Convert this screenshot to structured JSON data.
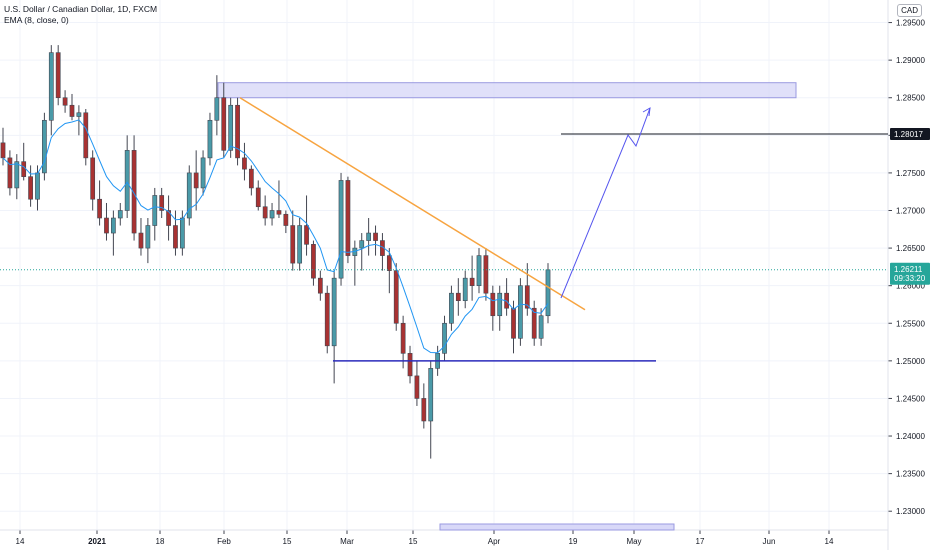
{
  "legend": {
    "title": "U.S. Dollar / Canadian Dollar, 1D, FXCM",
    "indicator": "EMA (8, close, 0)"
  },
  "currency": "CAD",
  "price_label": {
    "price": "1.26211",
    "time": "09:33:20"
  },
  "resistance_label": "1.28017",
  "colors": {
    "up": "#26a69a",
    "up_fill": "#4a9aa8",
    "down": "#8b1a1a",
    "down_fill": "#a83232",
    "wick": "#434651",
    "ema": "#2196f3",
    "trendline": "#f7a440",
    "support": "#2b2bbb",
    "arrow": "#5555ee",
    "zone_fill": "#d8d8f8",
    "zone_border": "#9a9ae0",
    "grid": "#f0f3fa",
    "price_badge": "#26a69a"
  },
  "chart_data": {
    "type": "candlestick",
    "title": "U.S. Dollar / Canadian Dollar, 1D, FXCM",
    "y_axis": {
      "ticks": [
        "1.29500",
        "1.29000",
        "1.28500",
        "1.28000",
        "1.27500",
        "1.27000",
        "1.26500",
        "1.26000",
        "1.25500",
        "1.25000",
        "1.24500",
        "1.24000",
        "1.23500",
        "1.23000"
      ],
      "min": 1.2275,
      "max": 1.298
    },
    "x_axis": {
      "ticks": [
        "14",
        "2021",
        "18",
        "Feb",
        "15",
        "Mar",
        "15",
        "Apr",
        "19",
        "May",
        "17",
        "Jun",
        "14"
      ],
      "bold": [
        "2021"
      ]
    },
    "series": [
      {
        "name": "USD/CAD",
        "candles": [
          [
            1.279,
            1.281,
            1.276,
            1.277
          ],
          [
            1.277,
            1.278,
            1.272,
            1.273
          ],
          [
            1.273,
            1.2775,
            1.2715,
            1.2765
          ],
          [
            1.2765,
            1.279,
            1.274,
            1.2745
          ],
          [
            1.2745,
            1.276,
            1.2705,
            1.2715
          ],
          [
            1.2715,
            1.276,
            1.27,
            1.275
          ],
          [
            1.275,
            1.283,
            1.274,
            1.282
          ],
          [
            1.282,
            1.292,
            1.28,
            1.291
          ],
          [
            1.291,
            1.292,
            1.284,
            1.285
          ],
          [
            1.285,
            1.286,
            1.283,
            1.284
          ],
          [
            1.284,
            1.2855,
            1.282,
            1.2825
          ],
          [
            1.2825,
            1.284,
            1.28,
            1.283
          ],
          [
            1.283,
            1.2835,
            1.276,
            1.277
          ],
          [
            1.277,
            1.278,
            1.27,
            1.2715
          ],
          [
            1.2715,
            1.274,
            1.268,
            1.269
          ],
          [
            1.269,
            1.271,
            1.266,
            1.267
          ],
          [
            1.267,
            1.27,
            1.264,
            1.269
          ],
          [
            1.269,
            1.271,
            1.268,
            1.27
          ],
          [
            1.27,
            1.28,
            1.269,
            1.278
          ],
          [
            1.278,
            1.28,
            1.266,
            1.267
          ],
          [
            1.267,
            1.269,
            1.264,
            1.265
          ],
          [
            1.265,
            1.269,
            1.263,
            1.268
          ],
          [
            1.268,
            1.273,
            1.266,
            1.272
          ],
          [
            1.272,
            1.273,
            1.269,
            1.27
          ],
          [
            1.27,
            1.272,
            1.266,
            1.268
          ],
          [
            1.268,
            1.27,
            1.264,
            1.265
          ],
          [
            1.265,
            1.27,
            1.264,
            1.269
          ],
          [
            1.269,
            1.276,
            1.268,
            1.275
          ],
          [
            1.275,
            1.278,
            1.27,
            1.273
          ],
          [
            1.273,
            1.278,
            1.272,
            1.277
          ],
          [
            1.277,
            1.283,
            1.276,
            1.282
          ],
          [
            1.282,
            1.288,
            1.28,
            1.285
          ],
          [
            1.285,
            1.287,
            1.277,
            1.278
          ],
          [
            1.278,
            1.285,
            1.277,
            1.284
          ],
          [
            1.284,
            1.285,
            1.276,
            1.277
          ],
          [
            1.277,
            1.279,
            1.274,
            1.2755
          ],
          [
            1.2755,
            1.276,
            1.272,
            1.273
          ],
          [
            1.273,
            1.274,
            1.27,
            1.2705
          ],
          [
            1.2705,
            1.272,
            1.268,
            1.269
          ],
          [
            1.269,
            1.271,
            1.268,
            1.27
          ],
          [
            1.27,
            1.274,
            1.269,
            1.2695
          ],
          [
            1.2695,
            1.27,
            1.267,
            1.268
          ],
          [
            1.268,
            1.27,
            1.262,
            1.263
          ],
          [
            1.263,
            1.269,
            1.262,
            1.268
          ],
          [
            1.268,
            1.272,
            1.264,
            1.2655
          ],
          [
            1.2655,
            1.266,
            1.26,
            1.261
          ],
          [
            1.261,
            1.262,
            1.258,
            1.259
          ],
          [
            1.259,
            1.26,
            1.251,
            1.252
          ],
          [
            1.252,
            1.262,
            1.247,
            1.261
          ],
          [
            1.261,
            1.275,
            1.26,
            1.274
          ],
          [
            1.274,
            1.2745,
            1.263,
            1.264
          ],
          [
            1.264,
            1.266,
            1.26,
            1.265
          ],
          [
            1.265,
            1.267,
            1.262,
            1.266
          ],
          [
            1.266,
            1.269,
            1.264,
            1.267
          ],
          [
            1.267,
            1.268,
            1.264,
            1.266
          ],
          [
            1.266,
            1.267,
            1.262,
            1.264
          ],
          [
            1.264,
            1.265,
            1.259,
            1.262
          ],
          [
            1.262,
            1.263,
            1.254,
            1.255
          ],
          [
            1.255,
            1.256,
            1.249,
            1.251
          ],
          [
            1.251,
            1.252,
            1.247,
            1.248
          ],
          [
            1.248,
            1.25,
            1.244,
            1.245
          ],
          [
            1.245,
            1.247,
            1.241,
            1.242
          ],
          [
            1.242,
            1.25,
            1.237,
            1.249
          ],
          [
            1.249,
            1.252,
            1.248,
            1.251
          ],
          [
            1.251,
            1.256,
            1.25,
            1.255
          ],
          [
            1.255,
            1.26,
            1.254,
            1.259
          ],
          [
            1.259,
            1.261,
            1.256,
            1.258
          ],
          [
            1.258,
            1.262,
            1.257,
            1.261
          ],
          [
            1.261,
            1.264,
            1.258,
            1.26
          ],
          [
            1.26,
            1.265,
            1.259,
            1.264
          ],
          [
            1.264,
            1.265,
            1.258,
            1.259
          ],
          [
            1.259,
            1.26,
            1.254,
            1.256
          ],
          [
            1.256,
            1.26,
            1.254,
            1.259
          ],
          [
            1.259,
            1.261,
            1.256,
            1.257
          ],
          [
            1.257,
            1.258,
            1.251,
            1.253
          ],
          [
            1.253,
            1.261,
            1.252,
            1.26
          ],
          [
            1.26,
            1.263,
            1.256,
            1.257
          ],
          [
            1.257,
            1.258,
            1.252,
            1.253
          ],
          [
            1.253,
            1.257,
            1.252,
            1.256
          ],
          [
            1.256,
            1.263,
            1.255,
            1.2621
          ]
        ]
      }
    ],
    "ema_period": 8,
    "annotations": {
      "resistance_zone": {
        "top": 1.287,
        "bottom": 1.285
      },
      "resistance_line": 1.28017,
      "support_line": 1.25,
      "current_price": 1.26211
    }
  }
}
